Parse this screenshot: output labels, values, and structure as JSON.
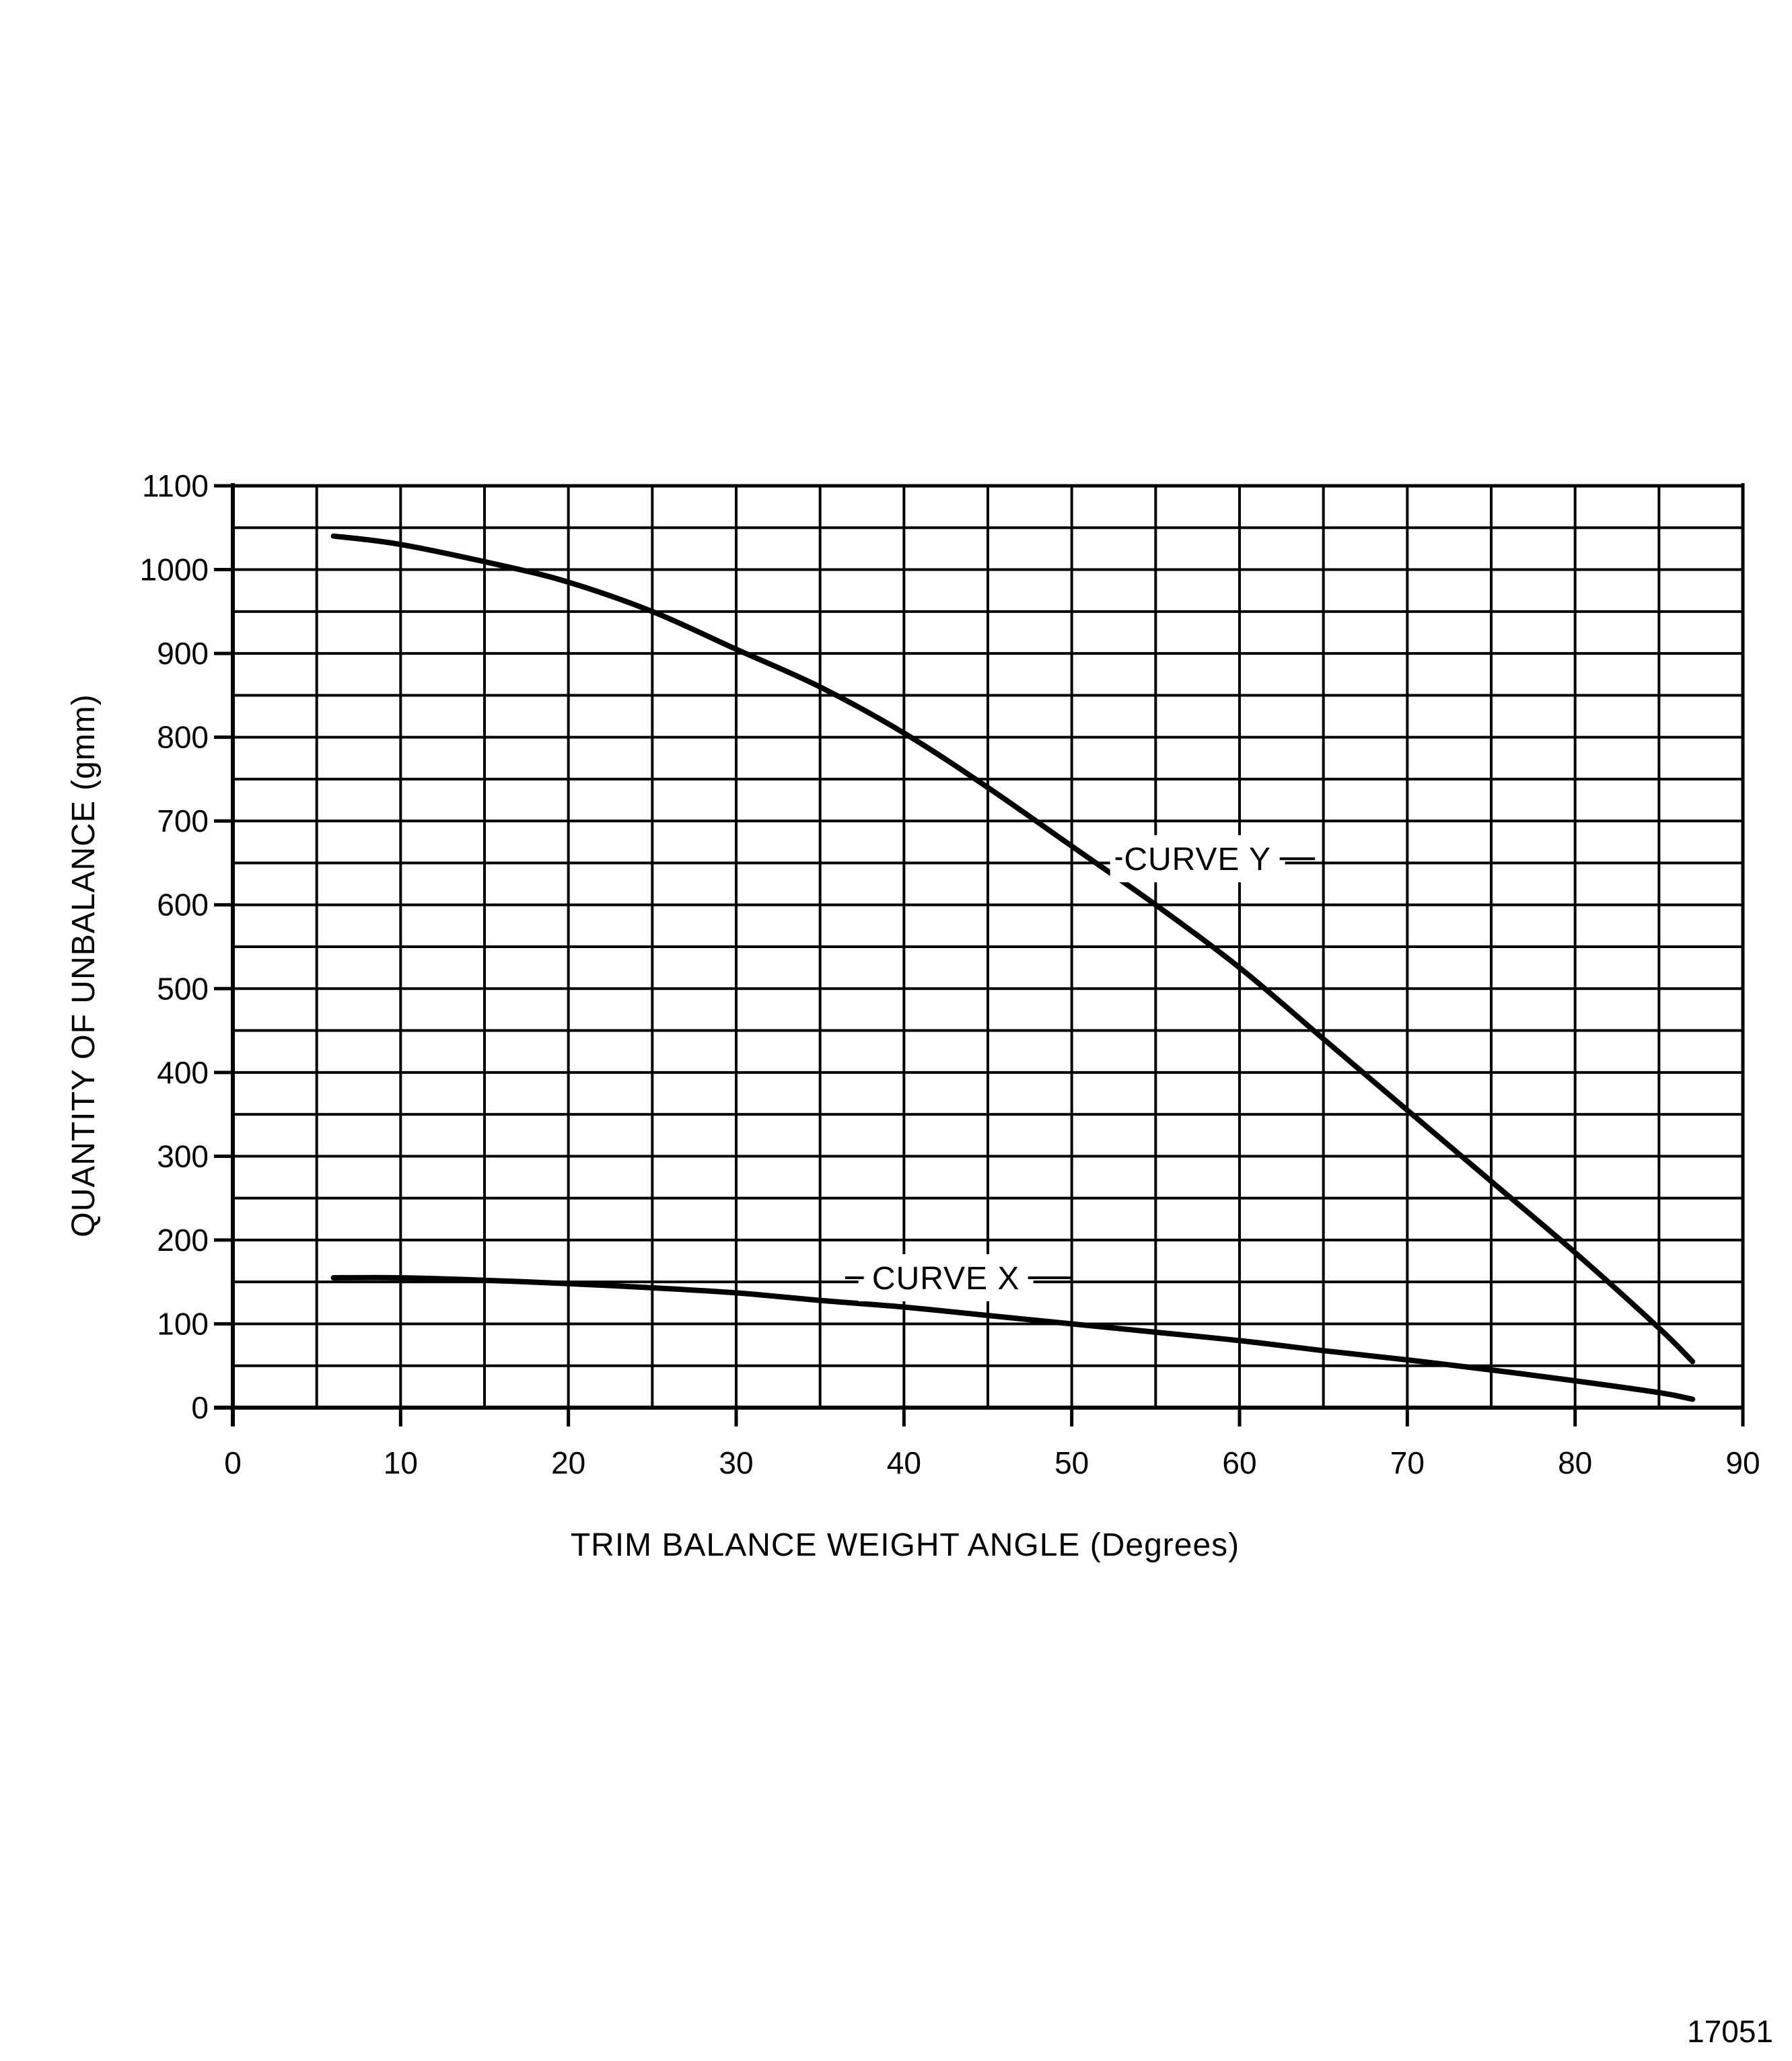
{
  "chart_data": {
    "type": "line",
    "xlabel": "TRIM BALANCE WEIGHT ANGLE (Degrees)",
    "ylabel": "QUANTITY OF UNBALANCE (gmm)",
    "xlim": [
      0,
      90
    ],
    "ylim": [
      0,
      1100
    ],
    "xticks": [
      0,
      10,
      20,
      30,
      40,
      50,
      60,
      70,
      80,
      90
    ],
    "yticks": [
      0,
      100,
      200,
      300,
      400,
      500,
      600,
      700,
      800,
      900,
      1000,
      1100
    ],
    "xtick_labels": [
      "0",
      "10",
      "20",
      "30",
      "40",
      "50",
      "60",
      "70",
      "80",
      "90"
    ],
    "ytick_labels": [
      "0",
      "100",
      "200",
      "300",
      "400",
      "500",
      "600",
      "700",
      "800",
      "900",
      "1000",
      "1100"
    ],
    "x_minor_step": 5,
    "y_minor_step": 50,
    "grid": true,
    "legend": "none",
    "series": [
      {
        "name": "CURVE Y",
        "x": [
          6,
          10,
          16,
          20,
          25,
          30,
          35,
          40,
          45,
          50,
          55,
          60,
          65,
          70,
          75,
          80,
          85,
          87
        ],
        "y": [
          1040,
          1030,
          1005,
          985,
          950,
          905,
          860,
          805,
          740,
          670,
          600,
          525,
          440,
          355,
          270,
          185,
          95,
          55
        ]
      },
      {
        "name": "CURVE X",
        "x": [
          6,
          10,
          15,
          20,
          25,
          30,
          35,
          40,
          45,
          50,
          55,
          60,
          65,
          70,
          75,
          80,
          85,
          87
        ],
        "y": [
          155,
          155,
          152,
          148,
          143,
          137,
          128,
          120,
          110,
          100,
          90,
          80,
          68,
          57,
          45,
          32,
          18,
          10
        ]
      }
    ],
    "annotations": [
      {
        "text": "CURVE Y",
        "series": "CURVE Y"
      },
      {
        "text": "CURVE X",
        "series": "CURVE X"
      }
    ]
  },
  "figure_id": "17051",
  "colors": {
    "ink": "#000000",
    "paper": "#ffffff"
  }
}
